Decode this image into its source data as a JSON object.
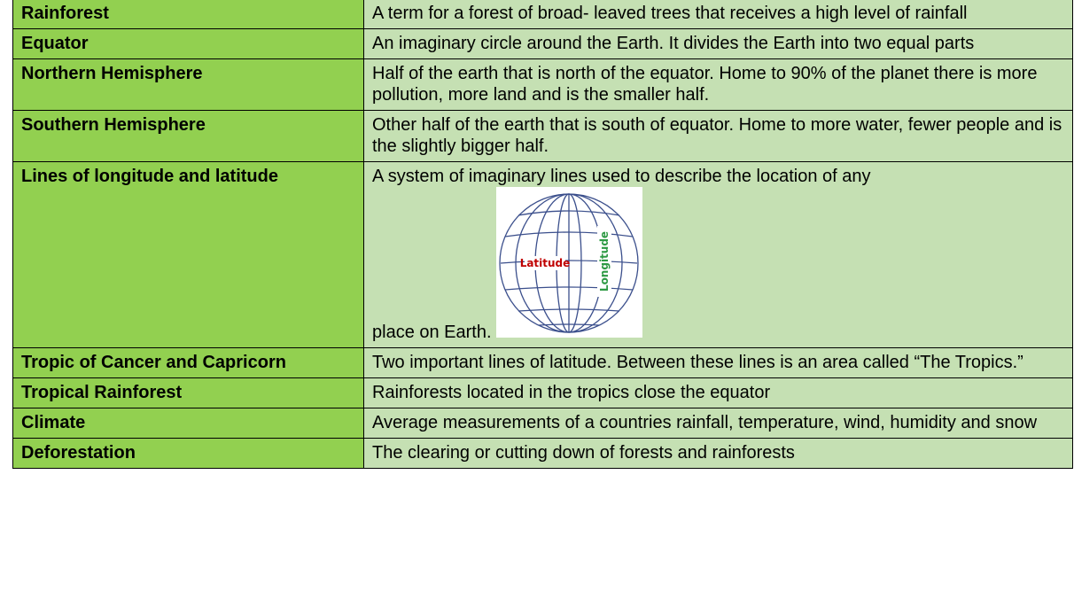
{
  "table": {
    "rows": [
      {
        "term": "Rainforest",
        "definition": "A term for a forest of broad- leaved trees that receives a high level of rainfall"
      },
      {
        "term": "Equator",
        "definition": "An imaginary circle around the Earth. It divides the Earth into two equal parts"
      },
      {
        "term": "Northern Hemisphere",
        "definition": "Half of the earth that is north of the equator. Home to 90% of the planet there is more pollution, more land and is the smaller half."
      },
      {
        "term": "Southern Hemisphere",
        "definition": "Other half of the earth that is south of equator. Home to more water, fewer people and is the slightly bigger half."
      },
      {
        "term": "Lines of longitude and latitude",
        "definition": "A system of imaginary lines used to describe the location of any",
        "definition_continued": "place on Earth."
      },
      {
        "term": "Tropic of Cancer and Capricorn",
        "definition": "Two important lines of latitude. Between these lines is an area called “The Tropics.”"
      },
      {
        "term": "Tropical Rainforest",
        "definition": "Rainforests located in the tropics close the equator"
      },
      {
        "term": "Climate",
        "definition": "Average measurements of a countries rainfall, temperature, wind, humidity and snow"
      },
      {
        "term": "Deforestation",
        "definition": "The clearing or cutting down of forests and rainforests"
      }
    ]
  },
  "globe": {
    "latitude_label": "Latitude",
    "longitude_label": "Longitude"
  }
}
